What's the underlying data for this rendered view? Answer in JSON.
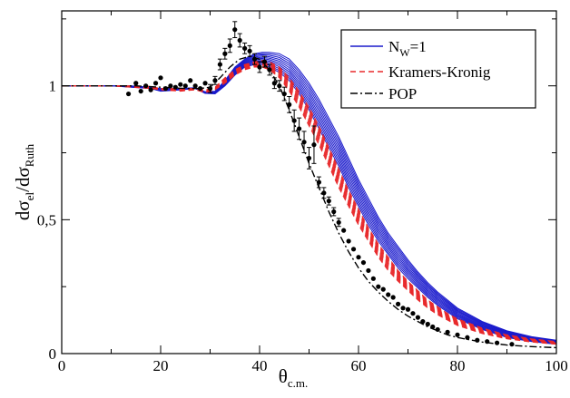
{
  "chart_data": {
    "type": "line",
    "title": "",
    "xlabel": {
      "main": "θ",
      "sub": "c.m."
    },
    "ylabel": {
      "parts": [
        {
          "t": "dσ",
          "sub": false
        },
        {
          "t": "el",
          "sub": true
        },
        {
          "t": "/dσ",
          "sub": false
        },
        {
          "t": "Ruth",
          "sub": true
        }
      ]
    },
    "xlim": [
      0,
      100
    ],
    "ylim": [
      0,
      1.28
    ],
    "xticks": [
      0,
      20,
      40,
      60,
      80,
      100
    ],
    "xtick_labels": [
      "0",
      "20",
      "40",
      "60",
      "80",
      "100"
    ],
    "yticks": [
      0,
      0.5,
      1
    ],
    "ytick_labels": [
      "0",
      "0,5",
      "1"
    ],
    "x_minor_step": 10,
    "y_minor_step": 0.25,
    "grid": false,
    "legend_position": "top-right",
    "colors": {
      "nw": "#1a1acc",
      "kk": "#e8282a",
      "pop": "#000000",
      "data": "#000000"
    },
    "series": [
      {
        "name": "N",
        "name_sub": "W",
        "name_suffix": "=1",
        "style": "band-solid",
        "color": "#1a1acc",
        "x": [
          0,
          10,
          14,
          18,
          20,
          24,
          27,
          29,
          31,
          33,
          35,
          37,
          39,
          40.5,
          42,
          44,
          46,
          48,
          50,
          52,
          54,
          56,
          58,
          60,
          62,
          64,
          66,
          68,
          70,
          72,
          74,
          76,
          78,
          80,
          85,
          90,
          95,
          100
        ],
        "lower": [
          1.0,
          1.0,
          0.995,
          0.99,
          0.98,
          0.985,
          0.99,
          0.972,
          0.97,
          1.0,
          1.04,
          1.07,
          1.08,
          1.08,
          1.07,
          1.05,
          1.02,
          0.97,
          0.91,
          0.84,
          0.77,
          0.7,
          0.62,
          0.55,
          0.48,
          0.42,
          0.37,
          0.32,
          0.28,
          0.245,
          0.21,
          0.18,
          0.155,
          0.13,
          0.09,
          0.06,
          0.045,
          0.035
        ],
        "upper": [
          1.0,
          1.0,
          1.0,
          0.995,
          0.99,
          0.99,
          0.993,
          0.978,
          0.98,
          1.02,
          1.07,
          1.1,
          1.12,
          1.125,
          1.125,
          1.12,
          1.1,
          1.06,
          1.01,
          0.95,
          0.88,
          0.81,
          0.73,
          0.65,
          0.58,
          0.51,
          0.45,
          0.4,
          0.35,
          0.305,
          0.265,
          0.23,
          0.2,
          0.17,
          0.12,
          0.085,
          0.063,
          0.05
        ]
      },
      {
        "name": "Kramers-Kronig",
        "style": "band-dashed",
        "color": "#e8282a",
        "x": [
          0,
          10,
          14,
          18,
          20,
          24,
          27,
          29,
          31,
          33,
          35,
          37,
          39,
          40.5,
          42,
          44,
          46,
          48,
          50,
          52,
          54,
          56,
          58,
          60,
          62,
          64,
          66,
          68,
          70,
          72,
          74,
          76,
          78,
          80,
          85,
          90,
          95,
          100
        ],
        "lower": [
          1.0,
          1.0,
          0.995,
          0.99,
          0.985,
          0.98,
          0.985,
          0.975,
          0.985,
          1.01,
          1.04,
          1.06,
          1.07,
          1.07,
          1.06,
          1.03,
          0.98,
          0.92,
          0.85,
          0.78,
          0.7,
          0.62,
          0.55,
          0.48,
          0.42,
          0.36,
          0.31,
          0.27,
          0.235,
          0.2,
          0.17,
          0.145,
          0.125,
          0.105,
          0.075,
          0.055,
          0.043,
          0.035
        ],
        "upper": [
          1.0,
          1.0,
          1.0,
          0.998,
          0.99,
          0.99,
          0.99,
          0.985,
          0.995,
          1.03,
          1.06,
          1.08,
          1.09,
          1.095,
          1.09,
          1.07,
          1.03,
          0.98,
          0.92,
          0.85,
          0.77,
          0.69,
          0.61,
          0.54,
          0.47,
          0.41,
          0.36,
          0.31,
          0.27,
          0.235,
          0.2,
          0.175,
          0.15,
          0.13,
          0.095,
          0.07,
          0.055,
          0.045
        ]
      },
      {
        "name": "POP",
        "style": "dash-dot",
        "color": "#000000",
        "x": [
          0,
          10,
          15,
          20,
          25,
          28,
          30,
          32,
          34,
          36,
          38,
          40,
          42,
          44,
          46,
          48,
          50,
          52,
          54,
          56,
          58,
          60,
          62,
          64,
          66,
          68,
          70,
          72,
          74,
          76,
          78,
          80,
          85,
          90,
          95,
          100
        ],
        "y": [
          1.0,
          1.0,
          1.0,
          0.995,
          0.99,
          0.99,
          0.995,
          1.03,
          1.07,
          1.1,
          1.11,
          1.1,
          1.06,
          1.0,
          0.91,
          0.81,
          0.71,
          0.62,
          0.53,
          0.45,
          0.38,
          0.32,
          0.27,
          0.23,
          0.195,
          0.165,
          0.14,
          0.12,
          0.1,
          0.085,
          0.07,
          0.06,
          0.043,
          0.032,
          0.026,
          0.022
        ]
      },
      {
        "name": "",
        "style": "points",
        "color": "#000000",
        "x": [
          13.5,
          15,
          16,
          17,
          18,
          19,
          20,
          21,
          22,
          23,
          24,
          25,
          26,
          27,
          28,
          29,
          30,
          31,
          32,
          33,
          34,
          35,
          36,
          37,
          38,
          39,
          40,
          41,
          42,
          43,
          44,
          45,
          46,
          47,
          48,
          49,
          50,
          51,
          52,
          53,
          54,
          55,
          56,
          57,
          58,
          59,
          60,
          61,
          62,
          63,
          64,
          65,
          66,
          67,
          68,
          69,
          70,
          71,
          72,
          73,
          74,
          75,
          76,
          78,
          80,
          82,
          84,
          86,
          88,
          91
        ],
        "y": [
          0.97,
          1.01,
          0.98,
          1.0,
          0.985,
          1.01,
          1.03,
          0.99,
          1.0,
          0.995,
          1.005,
          1.0,
          1.02,
          1.0,
          0.99,
          1.01,
          0.99,
          1.02,
          1.08,
          1.12,
          1.15,
          1.21,
          1.17,
          1.14,
          1.13,
          1.1,
          1.07,
          1.09,
          1.06,
          1.01,
          1.0,
          0.97,
          0.93,
          0.87,
          0.84,
          0.79,
          0.73,
          0.78,
          0.64,
          0.6,
          0.57,
          0.53,
          0.49,
          0.46,
          0.42,
          0.39,
          0.36,
          0.34,
          0.31,
          0.28,
          0.25,
          0.24,
          0.22,
          0.21,
          0.185,
          0.17,
          0.165,
          0.15,
          0.135,
          0.12,
          0.11,
          0.1,
          0.09,
          0.08,
          0.07,
          0.06,
          0.05,
          0.045,
          0.04,
          0.035
        ],
        "err": [
          0.01,
          0.01,
          0.01,
          0.01,
          0.01,
          0.01,
          0.01,
          0.01,
          0.01,
          0.01,
          0.01,
          0.01,
          0.01,
          0.01,
          0.01,
          0.01,
          0.015,
          0.015,
          0.02,
          0.02,
          0.025,
          0.03,
          0.025,
          0.02,
          0.02,
          0.02,
          0.02,
          0.02,
          0.02,
          0.02,
          0.02,
          0.025,
          0.03,
          0.04,
          0.04,
          0.04,
          0.04,
          0.07,
          0.02,
          0.02,
          0.015,
          0.015,
          0.015,
          0.01,
          0.01,
          0.01,
          0.01,
          0.01,
          0.01,
          0.01,
          0.01,
          0.01,
          0.01,
          0.01,
          0.01,
          0.01,
          0.01,
          0.005,
          0.005,
          0.005,
          0.005,
          0.005,
          0.005,
          0.005,
          0.005,
          0.005,
          0.005,
          0.005,
          0.005,
          0.005
        ]
      }
    ]
  }
}
